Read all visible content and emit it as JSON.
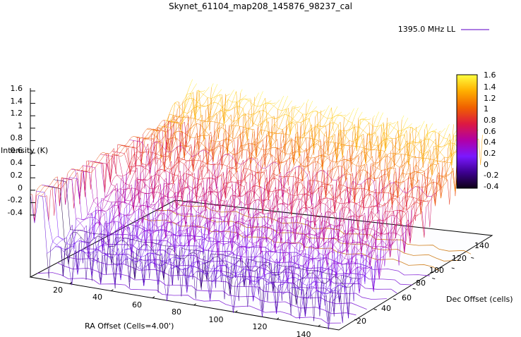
{
  "chart_data": {
    "type": "surface",
    "title": "Skynet_61104_map208_145876_98237_cal",
    "legend": {
      "label": "1395.0 MHz LL",
      "position": "top-right",
      "color": "#7a2fd0"
    },
    "zlabel": "Intensity (K)",
    "xlabel": "RA Offset (Cells=4.00')",
    "ylabel": "Dec Offset (cells)",
    "zlim": [
      -0.4,
      1.6
    ],
    "z_ticks": [
      "1.6",
      "1.4",
      "1.2",
      "1",
      "0.8",
      "0.6",
      "0.4",
      "0.2",
      "0",
      "-0.2",
      "-0.4"
    ],
    "x_ticks": [
      "20",
      "40",
      "60",
      "80",
      "100",
      "120",
      "140"
    ],
    "y_ticks": [
      "20",
      "40",
      "60",
      "80",
      "100",
      "120",
      "140"
    ],
    "colorbar": {
      "range": [
        -0.4,
        1.6
      ],
      "ticks": [
        "1.6",
        "1.4",
        "1.2",
        "1",
        "0.8",
        "0.6",
        "0.4",
        "0.2",
        "0",
        "-0.2",
        "-0.4"
      ],
      "colors": [
        "#0d0016",
        "#3d0090",
        "#7a18ff",
        "#b000a8",
        "#dd1a40",
        "#f06000",
        "#ffb000",
        "#ffff40"
      ]
    },
    "x_range": [
      1,
      150
    ],
    "y_range": [
      1,
      150
    ],
    "surface_trend": {
      "description": "intensity rises along Dec from about 0.1 at Dec=1 to about 1.5 at Dec=150; edge strip near RA=1 sits near 0.95",
      "z_at_dec_start": 0.1,
      "z_at_dec_end": 1.5,
      "z_edge_ra_start": 0.95
    }
  }
}
